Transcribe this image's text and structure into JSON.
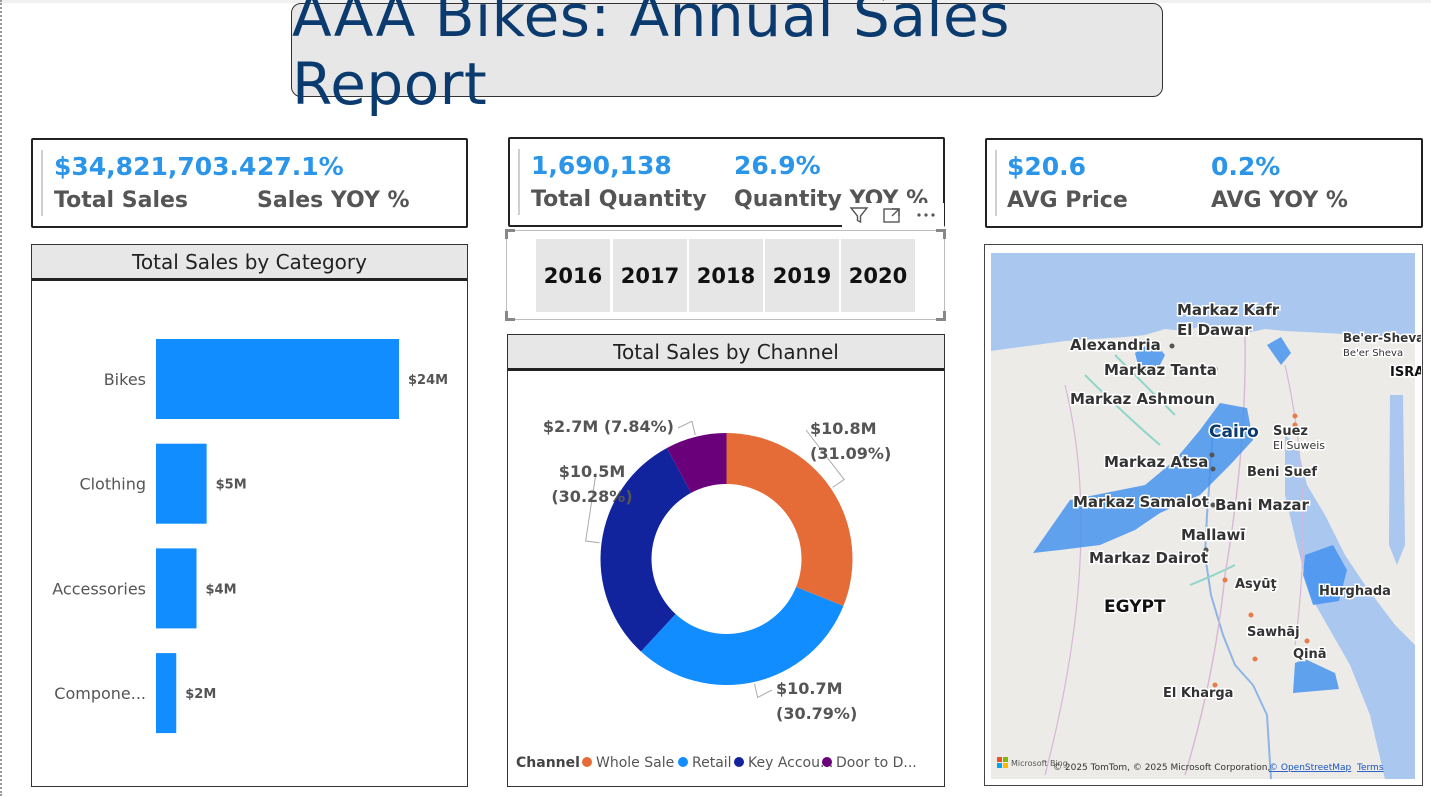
{
  "title": "AAA Bikes: Annual Sales Report",
  "kpis": [
    {
      "value1": "$34,821,703.4",
      "label1": "Total Sales",
      "value2": "27.1%",
      "label2": "Sales YOY %"
    },
    {
      "value1": "1,690,138",
      "label1": "Total Quantity",
      "value2": "26.9%",
      "label2": "Quantity YOY %"
    },
    {
      "value1": "$20.6",
      "label1": "AVG Price",
      "value2": "0.2%",
      "label2": "AVG YOY %"
    }
  ],
  "slicer": {
    "years": [
      "2016",
      "2017",
      "2018",
      "2019",
      "2020"
    ],
    "toolbar_icons": [
      "filter-icon",
      "focus-mode-icon",
      "more-options-icon"
    ]
  },
  "chart_data": [
    {
      "type": "bar",
      "orientation": "horizontal",
      "title": "Total Sales by Category",
      "categories": [
        "Bikes",
        "Clothing",
        "Accessories",
        "Compone..."
      ],
      "values": [
        24,
        5,
        4,
        2
      ],
      "data_labels": [
        "$24M",
        "$5M",
        "$4M",
        "$2M"
      ],
      "unit": "$M",
      "color": "#118dff"
    },
    {
      "type": "pie",
      "variant": "donut",
      "title": "Total Sales by Channel",
      "legend_title": "Channel",
      "legend_position": "bottom-left",
      "slices": [
        {
          "name": "Whole Sale",
          "legend_label": "Whole Sale",
          "value": 10.8,
          "percent": 31.09,
          "label_value": "$10.8M",
          "label_pct": "(31.09%)",
          "color": "#e66c37"
        },
        {
          "name": "Retail",
          "legend_label": "Retail",
          "value": 10.7,
          "percent": 30.79,
          "label_value": "$10.7M",
          "label_pct": "(30.79%)",
          "color": "#118dff"
        },
        {
          "name": "Key Accounts",
          "legend_label": "Key Accou...",
          "value": 10.5,
          "percent": 30.28,
          "label_value": "$10.5M",
          "label_pct": "(30.28%)",
          "color": "#12239e"
        },
        {
          "name": "Door to Door",
          "legend_label": "Door to D...",
          "value": 2.7,
          "percent": 7.84,
          "label_value": "$2.7M",
          "label_pct": "(7.84%)",
          "color": "#6b007b"
        }
      ]
    }
  ],
  "map": {
    "labels": [
      "Markaz Kafr",
      "El Dawar",
      "Alexandria",
      "Markaz Tanta",
      "Markaz Ashmoun",
      "Cairo",
      "Suez",
      "El Suweis",
      "Markaz Atsa",
      "Beni Suef",
      "Markaz Samalot",
      "Bani Mazar",
      "Mallawī",
      "Markaz Dairot",
      "EGYPT",
      "Asyūţ",
      "Hurghada",
      "Sawhāj",
      "Qinā",
      "El Kharga",
      "Be'er-Sheva",
      "Be'er Sheva",
      "ISRA"
    ],
    "attribution_logo": "Microsoft Bing",
    "attribution": "© 2025 TomTom, © 2025 Microsoft Corporation,",
    "attribution_link": "© OpenStreetMap",
    "terms": "Terms",
    "colors": {
      "water": "#a9c7ef",
      "land": "#ecebe7",
      "highlight": "#3d8ff0"
    }
  }
}
